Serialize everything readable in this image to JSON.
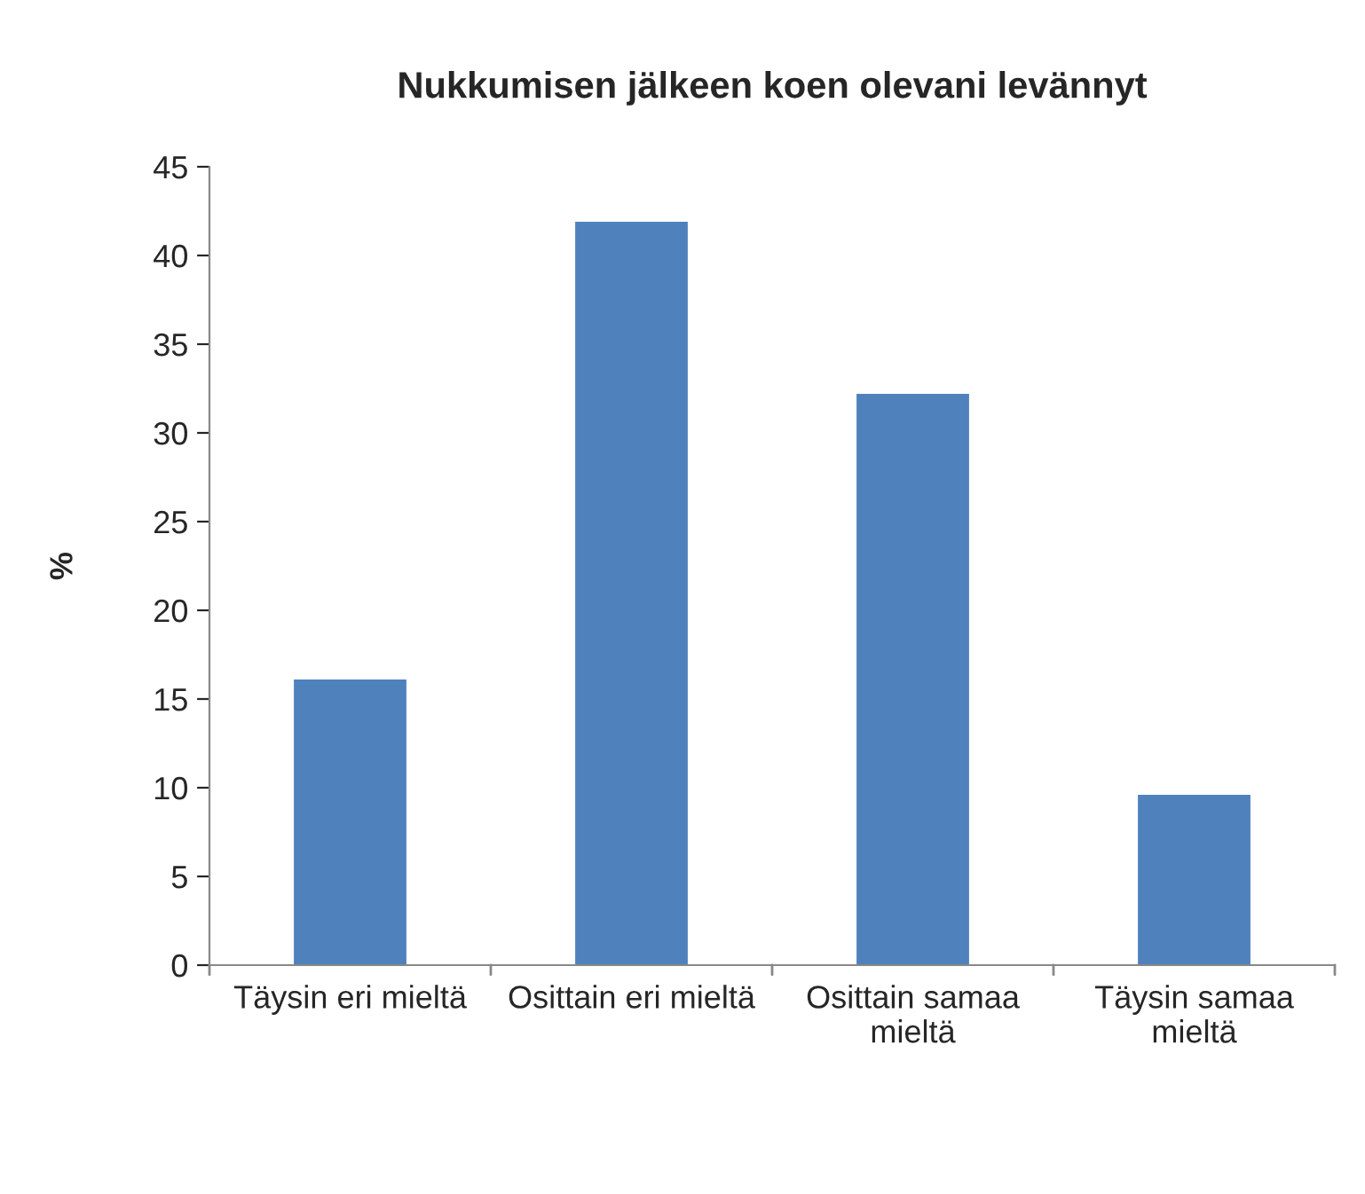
{
  "chart_data": {
    "type": "bar",
    "title": "Nukkumisen jälkeen koen olevani levännyt",
    "ylabel": "%",
    "categories": [
      "Täysin eri mieltä",
      "Osittain eri mieltä",
      "Osittain samaa\nmieltä",
      "Täysin samaa\nmieltä"
    ],
    "values": [
      16.1,
      41.9,
      32.2,
      9.6
    ],
    "color": "#4f81bd",
    "ylim": [
      0,
      45
    ],
    "yticks": [
      0,
      5,
      10,
      15,
      20,
      25,
      30,
      35,
      40,
      45
    ],
    "grid": false,
    "legend": false
  }
}
